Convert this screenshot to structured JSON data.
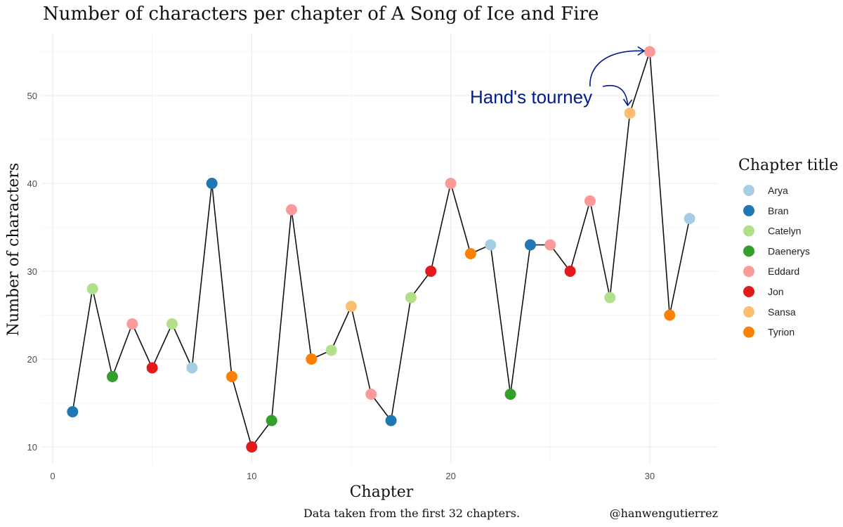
{
  "chart_data": {
    "type": "scatter",
    "title": "Number of characters per chapter of A Song of Ice and Fire",
    "xlabel": "Chapter",
    "ylabel": "Number of characters",
    "caption": "Data taken from the first 32 chapters.",
    "credit": "@hanwengutierrez",
    "xlim": [
      0,
      33
    ],
    "ylim": [
      8,
      57
    ],
    "x_ticks": [
      0,
      10,
      20,
      30
    ],
    "y_ticks": [
      10,
      20,
      30,
      40,
      50
    ],
    "grid": true,
    "connected_line": true,
    "legend": {
      "title": "Chapter title",
      "placement": "right",
      "entries": [
        {
          "label": "Arya",
          "color": "#a6cee3"
        },
        {
          "label": "Bran",
          "color": "#1f78b4"
        },
        {
          "label": "Catelyn",
          "color": "#b2df8a"
        },
        {
          "label": "Daenerys",
          "color": "#33a02c"
        },
        {
          "label": "Eddard",
          "color": "#fb9a99"
        },
        {
          "label": "Jon",
          "color": "#e31a1c"
        },
        {
          "label": "Sansa",
          "color": "#fdbf6f"
        },
        {
          "label": "Tyrion",
          "color": "#ff7f00"
        }
      ]
    },
    "points": [
      {
        "x": 1,
        "y": 14,
        "title": "Bran"
      },
      {
        "x": 2,
        "y": 28,
        "title": "Catelyn"
      },
      {
        "x": 3,
        "y": 18,
        "title": "Daenerys"
      },
      {
        "x": 4,
        "y": 24,
        "title": "Eddard"
      },
      {
        "x": 5,
        "y": 19,
        "title": "Jon"
      },
      {
        "x": 6,
        "y": 24,
        "title": "Catelyn"
      },
      {
        "x": 7,
        "y": 19,
        "title": "Arya"
      },
      {
        "x": 8,
        "y": 40,
        "title": "Bran"
      },
      {
        "x": 9,
        "y": 18,
        "title": "Tyrion"
      },
      {
        "x": 10,
        "y": 10,
        "title": "Jon"
      },
      {
        "x": 11,
        "y": 13,
        "title": "Daenerys"
      },
      {
        "x": 12,
        "y": 37,
        "title": "Eddard"
      },
      {
        "x": 13,
        "y": 20,
        "title": "Tyrion"
      },
      {
        "x": 14,
        "y": 21,
        "title": "Catelyn"
      },
      {
        "x": 15,
        "y": 26,
        "title": "Sansa"
      },
      {
        "x": 16,
        "y": 16,
        "title": "Eddard"
      },
      {
        "x": 17,
        "y": 13,
        "title": "Bran"
      },
      {
        "x": 18,
        "y": 27,
        "title": "Catelyn"
      },
      {
        "x": 19,
        "y": 30,
        "title": "Jon"
      },
      {
        "x": 20,
        "y": 40,
        "title": "Eddard"
      },
      {
        "x": 21,
        "y": 32,
        "title": "Tyrion"
      },
      {
        "x": 22,
        "y": 33,
        "title": "Arya"
      },
      {
        "x": 23,
        "y": 16,
        "title": "Daenerys"
      },
      {
        "x": 24,
        "y": 33,
        "title": "Bran"
      },
      {
        "x": 25,
        "y": 33,
        "title": "Eddard"
      },
      {
        "x": 26,
        "y": 30,
        "title": "Jon"
      },
      {
        "x": 27,
        "y": 38,
        "title": "Eddard"
      },
      {
        "x": 28,
        "y": 27,
        "title": "Catelyn"
      },
      {
        "x": 29,
        "y": 48,
        "title": "Sansa"
      },
      {
        "x": 30,
        "y": 55,
        "title": "Eddard"
      },
      {
        "x": 31,
        "y": 25,
        "title": "Tyrion"
      },
      {
        "x": 32,
        "y": 36,
        "title": "Arya"
      }
    ],
    "annotation": {
      "text": "Hand's tourney",
      "color": "#001a8f",
      "targets": [
        {
          "x": 29,
          "y": 48
        },
        {
          "x": 30,
          "y": 55
        }
      ]
    }
  }
}
